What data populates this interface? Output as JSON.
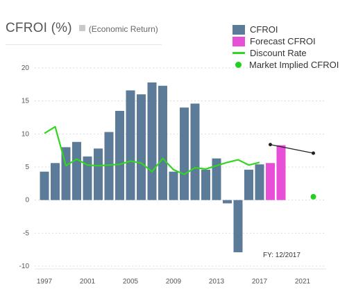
{
  "header": {
    "title": "CFROI (%)",
    "subtitle": "(Economic Return)"
  },
  "note": "FY: 12/2017",
  "legend": [
    {
      "label": "CFROI",
      "kind": "box",
      "color": "#5b7b99"
    },
    {
      "label": "Forecast CFROI",
      "kind": "box",
      "color": "#e64fd6"
    },
    {
      "label": "Discount Rate",
      "kind": "line",
      "color": "#33d61e"
    },
    {
      "label": "Market Implied CFROI",
      "kind": "dot",
      "color": "#22d11e"
    }
  ],
  "chart_data": {
    "type": "bar",
    "x_tick_labels": [
      "1997",
      "2001",
      "2005",
      "2009",
      "2013",
      "2017",
      "2021"
    ],
    "y_tick_labels": [
      "20",
      "15",
      "10",
      "5",
      "0",
      "-5",
      "-10"
    ],
    "ylim": [
      -10,
      20
    ],
    "grid": true,
    "colors": {
      "cfroi": "#5b7b99",
      "forecast": "#e64fd6",
      "discount": "#33d61e",
      "market_dot": "#22d11e",
      "market_line": "#222222"
    },
    "series": [
      {
        "name": "CFROI",
        "type": "bar",
        "x": [
          1997,
          1998,
          1999,
          2000,
          2001,
          2002,
          2003,
          2004,
          2005,
          2006,
          2007,
          2008,
          2009,
          2010,
          2011,
          2012,
          2013,
          2014,
          2015,
          2016,
          2017
        ],
        "values": [
          4.3,
          5.6,
          8.0,
          8.8,
          6.6,
          7.8,
          10.3,
          13.5,
          16.6,
          16.0,
          17.8,
          17.3,
          4.3,
          14.0,
          14.6,
          4.6,
          6.3,
          -0.5,
          -7.9,
          4.6,
          5.4
        ]
      },
      {
        "name": "Forecast CFROI",
        "type": "bar",
        "x": [
          2018,
          2019
        ],
        "values": [
          5.6,
          8.3
        ]
      },
      {
        "name": "Discount Rate",
        "type": "line",
        "x": [
          1997,
          1998,
          1999,
          2000,
          2001,
          2002,
          2003,
          2004,
          2005,
          2006,
          2007,
          2008,
          2009,
          2010,
          2011,
          2012,
          2013,
          2014,
          2015,
          2016,
          2017
        ],
        "values": [
          10.1,
          11.1,
          5.2,
          6.2,
          5.3,
          5.2,
          5.3,
          5.4,
          5.9,
          5.6,
          4.3,
          6.3,
          4.6,
          3.9,
          4.9,
          4.7,
          5.2,
          5.7,
          6.1,
          5.3,
          5.7
        ]
      },
      {
        "name": "Market Implied CFROI",
        "type": "scatter",
        "x": [
          2022
        ],
        "values": [
          0.5
        ]
      }
    ],
    "market_implied_line": {
      "x": [
        2018,
        2022
      ],
      "values": [
        8.4,
        7.1
      ]
    }
  }
}
